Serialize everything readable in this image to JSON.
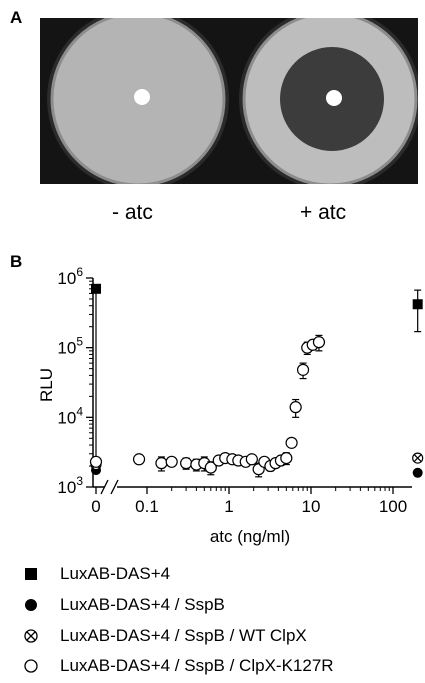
{
  "panel_a": {
    "letter": "A",
    "conditions": [
      "- atc",
      "+ atc"
    ]
  },
  "panel_b": {
    "letter": "B"
  },
  "colors": {
    "ink": "#000000",
    "plate_bg": "#1a1a1a",
    "lawn": "#b8b8b8",
    "zone": "#3a3a3a"
  },
  "chart_data": {
    "type": "scatter",
    "xlabel": "atc (ng/ml)",
    "ylabel": "RLU",
    "xscale": "log",
    "yscale": "log",
    "xticks": [
      "0",
      "0.1",
      "1",
      "10",
      "100"
    ],
    "yticks": [
      "10^3",
      "10^4",
      "10^5",
      "10^6"
    ],
    "ylim": [
      1000,
      1000000
    ],
    "axis_break": "x-axis between 0 and 0.1",
    "legend_placement": "below",
    "series": [
      {
        "name": "LuxAB-DAS+4",
        "marker": "filled-square",
        "points": [
          {
            "x": 0,
            "y": 700000,
            "err": 0
          },
          {
            "x": 200,
            "y": 420000,
            "err": 250000
          }
        ]
      },
      {
        "name": "LuxAB-DAS+4 / SspB",
        "marker": "filled-circle",
        "points": [
          {
            "x": 0,
            "y": 1750,
            "err": 0
          },
          {
            "x": 200,
            "y": 1600,
            "err": 0
          }
        ]
      },
      {
        "name": "LuxAB-DAS+4 / SspB / WT ClpX",
        "marker": "crossed-circle",
        "points": [
          {
            "x": 0,
            "y": 2100,
            "err": 0
          },
          {
            "x": 200,
            "y": 2600,
            "err": 0
          }
        ]
      },
      {
        "name": "LuxAB-DAS+4 / SspB / ClpX-K127R",
        "marker": "open-circle",
        "points": [
          {
            "x": 0,
            "y": 2300,
            "err": 0
          },
          {
            "x": 0.08,
            "y": 2500,
            "err": 0
          },
          {
            "x": 0.15,
            "y": 2200,
            "err": 500
          },
          {
            "x": 0.2,
            "y": 2300,
            "err": 0
          },
          {
            "x": 0.3,
            "y": 2200,
            "err": 400
          },
          {
            "x": 0.4,
            "y": 2100,
            "err": 400
          },
          {
            "x": 0.5,
            "y": 2200,
            "err": 500
          },
          {
            "x": 0.6,
            "y": 1900,
            "err": 400
          },
          {
            "x": 0.75,
            "y": 2400,
            "err": 0
          },
          {
            "x": 0.9,
            "y": 2600,
            "err": 0
          },
          {
            "x": 1.1,
            "y": 2500,
            "err": 300
          },
          {
            "x": 1.3,
            "y": 2400,
            "err": 0
          },
          {
            "x": 1.6,
            "y": 2300,
            "err": 0
          },
          {
            "x": 1.9,
            "y": 2500,
            "err": 0
          },
          {
            "x": 2.3,
            "y": 1800,
            "err": 400
          },
          {
            "x": 2.7,
            "y": 2300,
            "err": 0
          },
          {
            "x": 3.2,
            "y": 2000,
            "err": 300
          },
          {
            "x": 3.7,
            "y": 2200,
            "err": 0
          },
          {
            "x": 4.3,
            "y": 2400,
            "err": 300
          },
          {
            "x": 5.0,
            "y": 2600,
            "err": 500
          },
          {
            "x": 5.8,
            "y": 4300,
            "err": 600
          },
          {
            "x": 6.5,
            "y": 14000,
            "err": 4000
          },
          {
            "x": 8.0,
            "y": 48000,
            "err": 12000
          },
          {
            "x": 9.0,
            "y": 100000,
            "err": 20000
          },
          {
            "x": 10.5,
            "y": 110000,
            "err": 15000
          },
          {
            "x": 12.5,
            "y": 120000,
            "err": 30000
          }
        ]
      }
    ]
  }
}
